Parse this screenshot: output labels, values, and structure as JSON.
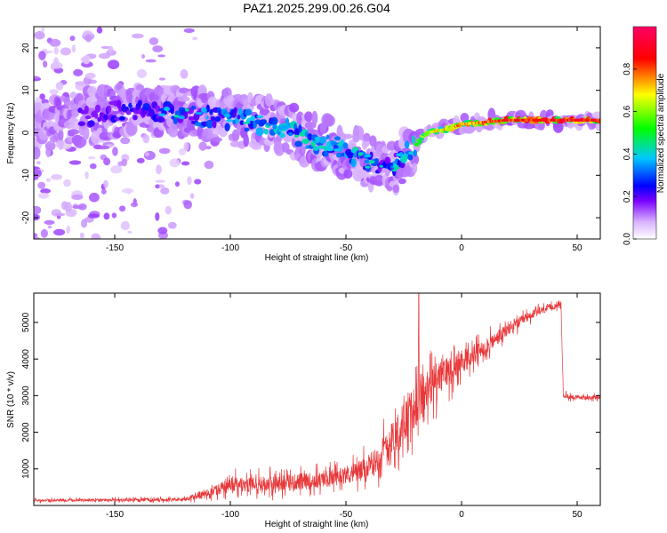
{
  "chart_data": [
    {
      "type": "heatmap",
      "title": "PAZ1.2025.299.00.26.G04",
      "xlabel": "Height of straight line (km)",
      "ylabel": "Frequency (Hz)",
      "xlim": [
        -185,
        60
      ],
      "ylim": [
        -25,
        25
      ],
      "xticks": [
        -150,
        -100,
        -50,
        0,
        50
      ],
      "yticks": [
        -20,
        -10,
        0,
        10,
        20
      ],
      "colorbar": {
        "label": "Normalized spectral amplitude",
        "range": [
          0.0,
          1.0
        ],
        "ticks": [
          0.0,
          0.2,
          0.4,
          0.6,
          0.8
        ],
        "tick_labels": [
          "0.0",
          "0.2",
          "0.4",
          "0.6",
          "0.8"
        ],
        "colors": [
          "#ffffff",
          "#d9b3ff",
          "#7a00ff",
          "#0000ff",
          "#00c8ff",
          "#00ff00",
          "#ffff00",
          "#ff0000",
          "#ff0066"
        ]
      },
      "ridge": {
        "x": [
          -185,
          -170,
          -150,
          -130,
          -110,
          -95,
          -80,
          -65,
          -50,
          -40,
          -30,
          -22,
          -15,
          -5,
          0,
          10,
          20,
          30,
          40,
          50,
          60
        ],
        "frequency": [
          0,
          3,
          5,
          5,
          4,
          3,
          2,
          -2,
          -4,
          -7,
          -8,
          -4,
          0,
          1,
          2,
          2.5,
          3,
          3,
          3,
          3,
          3
        ],
        "amplitude": [
          0.1,
          0.2,
          0.25,
          0.3,
          0.35,
          0.4,
          0.45,
          0.45,
          0.4,
          0.35,
          0.3,
          0.5,
          0.7,
          0.75,
          0.8,
          0.85,
          0.9,
          0.9,
          0.95,
          0.95,
          0.95
        ]
      }
    },
    {
      "type": "line",
      "xlabel": "Height of straight line (km)",
      "ylabel": "SNR (10 * v/v)",
      "xlim": [
        -185,
        60
      ],
      "ylim": [
        0,
        5800
      ],
      "xticks": [
        -150,
        -100,
        -50,
        0,
        50
      ],
      "yticks": [
        1000,
        2000,
        3000,
        4000,
        5000
      ],
      "color": "#e8383a",
      "envelope": {
        "x": [
          -185,
          -150,
          -120,
          -110,
          -100,
          -80,
          -60,
          -50,
          -40,
          -35,
          -30,
          -25,
          -20,
          -15,
          -10,
          -5,
          0,
          10,
          20,
          30,
          40,
          43,
          44,
          50,
          60
        ],
        "mean": [
          140,
          150,
          160,
          350,
          550,
          600,
          700,
          850,
          1000,
          1400,
          1800,
          2300,
          2700,
          3100,
          3500,
          3700,
          3900,
          4300,
          4800,
          5200,
          5450,
          5500,
          3000,
          2950,
          2950
        ],
        "spread": [
          80,
          80,
          100,
          250,
          450,
          500,
          500,
          550,
          700,
          900,
          1100,
          1200,
          1300,
          1200,
          1100,
          900,
          700,
          500,
          400,
          250,
          200,
          150,
          150,
          120,
          120
        ]
      },
      "spike": {
        "x": -18.5,
        "value": 5800
      }
    }
  ]
}
